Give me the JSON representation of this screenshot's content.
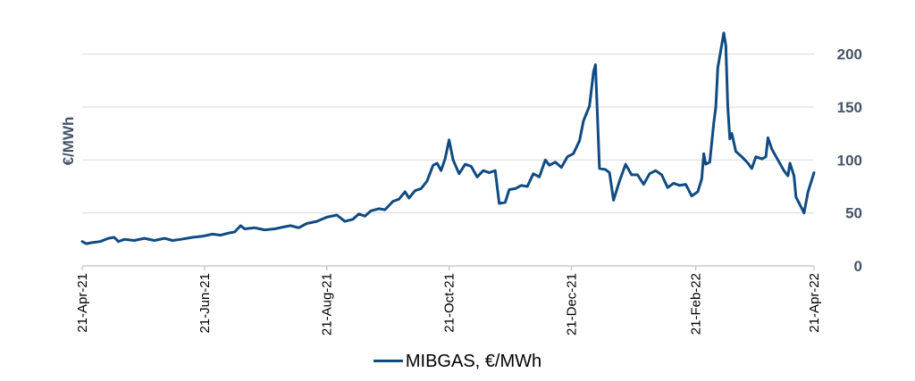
{
  "colors": {
    "series": "#0f4b82",
    "grid": "#d9d9d9",
    "axis": "#bfbfbf"
  },
  "chart_data": {
    "type": "line",
    "ylabel": "€/MWh",
    "ylim": [
      0,
      230
    ],
    "yticks": [
      0,
      50,
      100,
      150,
      200
    ],
    "xlim": [
      "2021-04-21",
      "2022-04-21"
    ],
    "xticks": [
      "21-Apr-21",
      "21-Jun-21",
      "21-Aug-21",
      "21-Oct-21",
      "21-Dec-21",
      "21-Feb-22",
      "21-Apr-22"
    ],
    "grid": true,
    "y_axis_side": "right",
    "legend_position": "bottom",
    "series": [
      {
        "name": "MIBGAS, €/MWh",
        "points": [
          [
            "2021-04-21",
            23
          ],
          [
            "2021-04-23",
            21
          ],
          [
            "2021-04-26",
            22
          ],
          [
            "2021-04-30",
            23
          ],
          [
            "2021-05-04",
            26
          ],
          [
            "2021-05-07",
            27
          ],
          [
            "2021-05-09",
            23
          ],
          [
            "2021-05-12",
            25
          ],
          [
            "2021-05-17",
            24
          ],
          [
            "2021-05-22",
            26
          ],
          [
            "2021-05-27",
            24
          ],
          [
            "2021-06-01",
            26
          ],
          [
            "2021-06-05",
            24
          ],
          [
            "2021-06-09",
            25
          ],
          [
            "2021-06-15",
            27
          ],
          [
            "2021-06-20",
            28
          ],
          [
            "2021-06-25",
            30
          ],
          [
            "2021-06-29",
            29
          ],
          [
            "2021-07-03",
            31
          ],
          [
            "2021-07-06",
            32
          ],
          [
            "2021-07-09",
            38
          ],
          [
            "2021-07-11",
            35
          ],
          [
            "2021-07-16",
            36
          ],
          [
            "2021-07-21",
            34
          ],
          [
            "2021-07-26",
            35
          ],
          [
            "2021-07-31",
            37
          ],
          [
            "2021-08-03",
            38
          ],
          [
            "2021-08-07",
            36
          ],
          [
            "2021-08-11",
            40
          ],
          [
            "2021-08-16",
            42
          ],
          [
            "2021-08-21",
            46
          ],
          [
            "2021-08-26",
            48
          ],
          [
            "2021-08-30",
            42
          ],
          [
            "2021-09-03",
            44
          ],
          [
            "2021-09-06",
            49
          ],
          [
            "2021-09-09",
            47
          ],
          [
            "2021-09-12",
            52
          ],
          [
            "2021-09-16",
            54
          ],
          [
            "2021-09-19",
            53
          ],
          [
            "2021-09-23",
            61
          ],
          [
            "2021-09-26",
            63
          ],
          [
            "2021-09-29",
            70
          ],
          [
            "2021-10-01",
            64
          ],
          [
            "2021-10-04",
            71
          ],
          [
            "2021-10-07",
            73
          ],
          [
            "2021-10-10",
            80
          ],
          [
            "2021-10-13",
            95
          ],
          [
            "2021-10-15",
            97
          ],
          [
            "2021-10-17",
            90
          ],
          [
            "2021-10-19",
            101
          ],
          [
            "2021-10-21",
            119
          ],
          [
            "2021-10-23",
            100
          ],
          [
            "2021-10-26",
            87
          ],
          [
            "2021-10-29",
            96
          ],
          [
            "2021-11-01",
            94
          ],
          [
            "2021-11-04",
            84
          ],
          [
            "2021-11-07",
            90
          ],
          [
            "2021-11-10",
            88
          ],
          [
            "2021-11-13",
            90
          ],
          [
            "2021-11-15",
            59
          ],
          [
            "2021-11-18",
            60
          ],
          [
            "2021-11-20",
            72
          ],
          [
            "2021-11-23",
            73
          ],
          [
            "2021-11-26",
            76
          ],
          [
            "2021-11-29",
            75
          ],
          [
            "2021-12-02",
            87
          ],
          [
            "2021-12-05",
            84
          ],
          [
            "2021-12-08",
            100
          ],
          [
            "2021-12-10",
            95
          ],
          [
            "2021-12-13",
            98
          ],
          [
            "2021-12-16",
            93
          ],
          [
            "2021-12-19",
            103
          ],
          [
            "2021-12-22",
            106
          ],
          [
            "2021-12-25",
            118
          ],
          [
            "2021-12-27",
            137
          ],
          [
            "2021-12-30",
            151
          ],
          [
            "2022-01-01",
            183
          ],
          [
            "2022-01-02",
            190
          ],
          [
            "2022-01-04",
            92
          ],
          [
            "2022-01-07",
            91
          ],
          [
            "2022-01-09",
            88
          ],
          [
            "2022-01-11",
            62
          ],
          [
            "2022-01-14",
            80
          ],
          [
            "2022-01-17",
            96
          ],
          [
            "2022-01-20",
            86
          ],
          [
            "2022-01-23",
            86
          ],
          [
            "2022-01-26",
            77
          ],
          [
            "2022-01-29",
            87
          ],
          [
            "2022-02-01",
            90
          ],
          [
            "2022-02-04",
            86
          ],
          [
            "2022-02-07",
            74
          ],
          [
            "2022-02-10",
            78
          ],
          [
            "2022-02-13",
            76
          ],
          [
            "2022-02-16",
            77
          ],
          [
            "2022-02-19",
            66
          ],
          [
            "2022-02-22",
            70
          ],
          [
            "2022-02-24",
            82
          ],
          [
            "2022-02-25",
            106
          ],
          [
            "2022-02-26",
            96
          ],
          [
            "2022-02-28",
            98
          ],
          [
            "2022-03-02",
            135
          ],
          [
            "2022-03-03",
            150
          ],
          [
            "2022-03-04",
            187
          ],
          [
            "2022-03-07",
            220
          ],
          [
            "2022-03-08",
            208
          ],
          [
            "2022-03-09",
            150
          ],
          [
            "2022-03-10",
            120
          ],
          [
            "2022-03-11",
            125
          ],
          [
            "2022-03-13",
            108
          ],
          [
            "2022-03-16",
            103
          ],
          [
            "2022-03-19",
            97
          ],
          [
            "2022-03-21",
            92
          ],
          [
            "2022-03-23",
            103
          ],
          [
            "2022-03-26",
            101
          ],
          [
            "2022-03-28",
            103
          ],
          [
            "2022-03-29",
            121
          ],
          [
            "2022-03-31",
            110
          ],
          [
            "2022-04-03",
            100
          ],
          [
            "2022-04-06",
            90
          ],
          [
            "2022-04-08",
            85
          ],
          [
            "2022-04-09",
            97
          ],
          [
            "2022-04-11",
            85
          ],
          [
            "2022-04-12",
            65
          ],
          [
            "2022-04-15",
            54
          ],
          [
            "2022-04-16",
            50
          ],
          [
            "2022-04-18",
            70
          ],
          [
            "2022-04-21",
            88
          ]
        ]
      }
    ]
  }
}
